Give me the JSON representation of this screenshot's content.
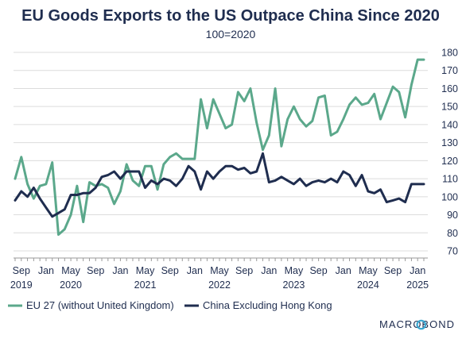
{
  "chart_data": {
    "type": "line",
    "title": "EU Goods Exports to the US Outpace China Since 2020",
    "subtitle": "100=2020",
    "x": [
      "2019-08",
      "2019-09",
      "2019-10",
      "2019-11",
      "2019-12",
      "2020-01",
      "2020-02",
      "2020-03",
      "2020-04",
      "2020-05",
      "2020-06",
      "2020-07",
      "2020-08",
      "2020-09",
      "2020-10",
      "2020-11",
      "2020-12",
      "2021-01",
      "2021-02",
      "2021-03",
      "2021-04",
      "2021-05",
      "2021-06",
      "2021-07",
      "2021-08",
      "2021-09",
      "2021-10",
      "2021-11",
      "2021-12",
      "2022-01",
      "2022-02",
      "2022-03",
      "2022-04",
      "2022-05",
      "2022-06",
      "2022-07",
      "2022-08",
      "2022-09",
      "2022-10",
      "2022-11",
      "2022-12",
      "2023-01",
      "2023-02",
      "2023-03",
      "2023-04",
      "2023-05",
      "2023-06",
      "2023-07",
      "2023-08",
      "2023-09",
      "2023-10",
      "2023-11",
      "2023-12",
      "2024-01",
      "2024-02",
      "2024-03",
      "2024-04",
      "2024-05",
      "2024-06",
      "2024-07",
      "2024-08",
      "2024-09",
      "2024-10",
      "2024-11",
      "2024-12",
      "2025-01",
      "2025-02"
    ],
    "series": [
      {
        "name": "EU 27 (without United Kingdom)",
        "color": "#5ba88b",
        "values": [
          110,
          122,
          107,
          99,
          106,
          107,
          119,
          79,
          82,
          90,
          106,
          86,
          108,
          106,
          107,
          105,
          96,
          103,
          118,
          109,
          106,
          117,
          117,
          104,
          118,
          122,
          124,
          121,
          121,
          121,
          154,
          138,
          154,
          146,
          138,
          140,
          158,
          153,
          160,
          141,
          126,
          134,
          160,
          128,
          143,
          150,
          143,
          139,
          142,
          155,
          156,
          134,
          136,
          143,
          151,
          155,
          151,
          152,
          157,
          143,
          152,
          161,
          158,
          144,
          162,
          176,
          176
        ]
      },
      {
        "name": "China Excluding Hong Kong",
        "color": "#1f2d4f",
        "values": [
          98,
          103,
          100,
          105,
          99,
          94,
          89,
          91,
          93,
          101,
          101,
          102,
          102,
          105,
          111,
          112,
          114,
          110,
          114,
          114,
          114,
          105,
          109,
          107,
          110,
          109,
          106,
          110,
          117,
          114,
          104,
          114,
          110,
          114,
          117,
          117,
          115,
          116,
          113,
          114,
          124,
          108,
          109,
          111,
          109,
          107,
          110,
          106,
          108,
          109,
          108,
          110,
          108,
          114,
          112,
          106,
          112,
          103,
          102,
          104,
          97,
          98,
          99,
          97,
          107,
          107,
          107
        ]
      }
    ],
    "y_ticks": [
      "70",
      "80",
      "90",
      "100",
      "110",
      "120",
      "130",
      "140",
      "150",
      "160",
      "170",
      "180"
    ],
    "ylim": [
      70,
      180
    ],
    "x_tick_labels": [
      {
        "date": "2019-09",
        "month": "Sep",
        "year": "2019"
      },
      {
        "date": "2020-01",
        "month": "Jan",
        "year": ""
      },
      {
        "date": "2020-05",
        "month": "May",
        "year": "2020"
      },
      {
        "date": "2020-09",
        "month": "Sep",
        "year": ""
      },
      {
        "date": "2021-01",
        "month": "Jan",
        "year": ""
      },
      {
        "date": "2021-05",
        "month": "May",
        "year": "2021"
      },
      {
        "date": "2021-09",
        "month": "Sep",
        "year": ""
      },
      {
        "date": "2022-01",
        "month": "Jan",
        "year": ""
      },
      {
        "date": "2022-05",
        "month": "May",
        "year": "2022"
      },
      {
        "date": "2022-09",
        "month": "Sep",
        "year": ""
      },
      {
        "date": "2023-01",
        "month": "Jan",
        "year": ""
      },
      {
        "date": "2023-05",
        "month": "May",
        "year": "2023"
      },
      {
        "date": "2023-09",
        "month": "Sep",
        "year": ""
      },
      {
        "date": "2024-01",
        "month": "Jan",
        "year": ""
      },
      {
        "date": "2024-05",
        "month": "May",
        "year": "2024"
      },
      {
        "date": "2024-09",
        "month": "Sep",
        "year": ""
      },
      {
        "date": "2025-01",
        "month": "Jan",
        "year": "2025"
      }
    ],
    "y_axis_side": "right",
    "grid": true,
    "legend_position": "bottom-left"
  },
  "brand": {
    "name": "MACROBOND",
    "accent_color": "#3aa6d0"
  }
}
